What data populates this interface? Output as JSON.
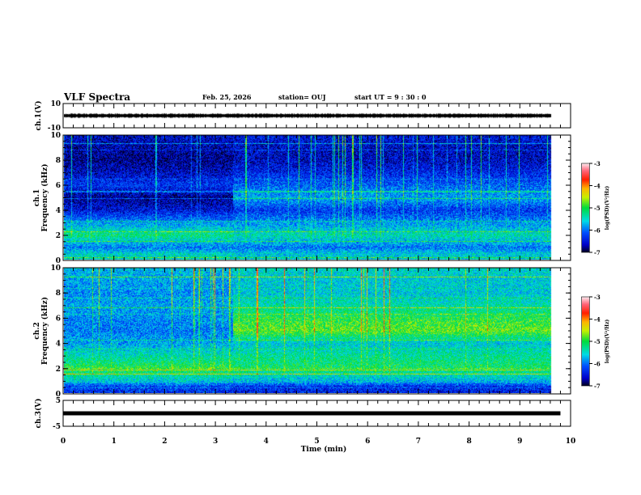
{
  "header": {
    "title": "VLF Spectra",
    "date": "Feb. 25, 2026",
    "station": "station= OUJ",
    "start": "start  UT =   9 : 30 : 0"
  },
  "chart_data": [
    {
      "type": "line",
      "name": "ch1-waveform",
      "ylabel": "ch.1(V)",
      "ylim": [
        -10,
        10
      ],
      "tick_labels": [
        "10",
        "-10"
      ],
      "series": [
        {
          "name": "ch.1",
          "mean": 0,
          "amplitude_approx": 1.5
        }
      ],
      "color": "#000000"
    },
    {
      "type": "heatmap",
      "name": "ch1-spectrogram",
      "ylabel": "ch.1\nFrequency (kHz)",
      "ylabel_lines": [
        "ch.1",
        "Frequency  (kHz)"
      ],
      "ylim": [
        0,
        10
      ],
      "ytick_labels": [
        "0",
        "2",
        "4",
        "6",
        "8",
        "10"
      ],
      "colorbar": {
        "label": "log(PSD)(V²/Hz)",
        "range": [
          -7,
          -3
        ],
        "tick_labels": [
          "-3",
          "-4",
          "-5",
          "-6",
          "-7"
        ]
      },
      "change_time_min": 3.4,
      "freq_bands_khz": [
        0.5,
        1,
        2,
        3,
        4,
        5,
        6,
        7,
        8,
        9,
        10
      ],
      "log_psd_before": [
        -5.5,
        -6.0,
        -5.2,
        -5.9,
        -6.5,
        -6.8,
        -6.3,
        -6.6,
        -6.8,
        -6.7,
        -6.6
      ],
      "log_psd_after": [
        -5.6,
        -6.0,
        -5.4,
        -5.9,
        -6.3,
        -5.8,
        -6.1,
        -6.4,
        -6.6,
        -6.6,
        -6.5
      ]
    },
    {
      "type": "heatmap",
      "name": "ch2-spectrogram",
      "ylabel_lines": [
        "ch.2",
        "Frequency  (kHz)"
      ],
      "ylim": [
        0,
        10
      ],
      "ytick_labels": [
        "0",
        "2",
        "4",
        "6",
        "8",
        "10"
      ],
      "colorbar": {
        "label": "log(PSD)(V²/Hz)",
        "range": [
          -7,
          -3
        ],
        "tick_labels": [
          "-3",
          "-4",
          "-5",
          "-6",
          "-7"
        ]
      },
      "change_time_min": 3.4,
      "freq_bands_khz": [
        0.5,
        1,
        2,
        3,
        4,
        5,
        6,
        7,
        8,
        9,
        10
      ],
      "log_psd_before": [
        -6.3,
        -5.6,
        -5.0,
        -5.4,
        -5.8,
        -6.0,
        -5.9,
        -5.8,
        -5.9,
        -5.8,
        -5.7
      ],
      "log_psd_after": [
        -6.4,
        -5.7,
        -5.1,
        -5.3,
        -5.6,
        -4.8,
        -5.0,
        -5.4,
        -5.6,
        -5.6,
        -5.5
      ]
    },
    {
      "type": "line",
      "name": "ch3-waveform",
      "ylabel": "ch.3(V)",
      "ylim": [
        -5,
        5
      ],
      "tick_labels": [
        "5",
        "-5"
      ],
      "series": [
        {
          "name": "ch.3",
          "mean": 0,
          "amplitude_approx": 0.3
        }
      ],
      "color": "#000000"
    }
  ],
  "xaxis": {
    "label": "Time  (min)",
    "xlim": [
      0,
      10
    ],
    "tick_labels": [
      "0",
      "1",
      "2",
      "3",
      "4",
      "5",
      "6",
      "7",
      "8",
      "9",
      "10"
    ],
    "data_end_min": 9.8
  }
}
